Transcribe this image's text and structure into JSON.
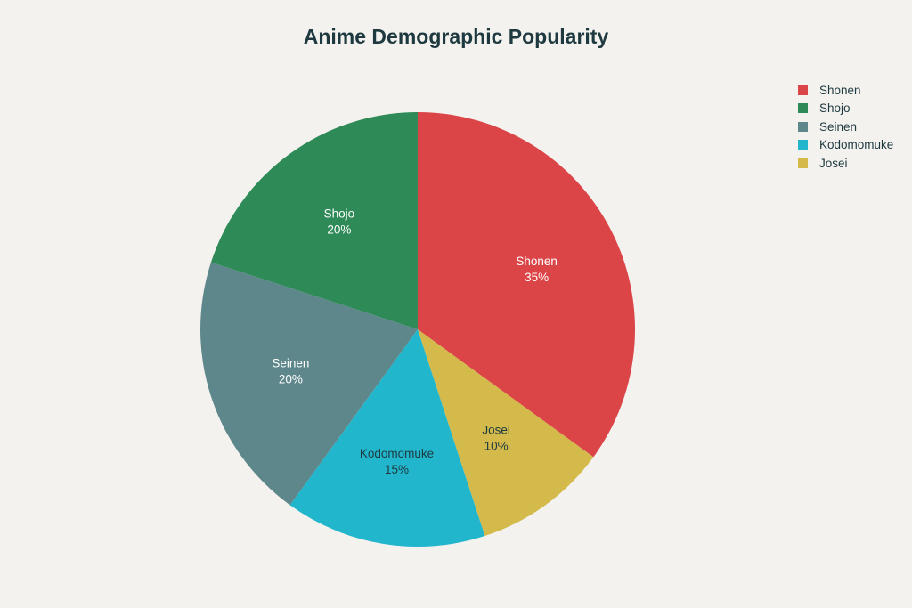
{
  "chart_data": {
    "type": "pie",
    "title": "Anime Demographic Popularity",
    "categories": [
      "Shonen",
      "Shojo",
      "Seinen",
      "Kodomomuke",
      "Josei"
    ],
    "values": [
      35,
      20,
      20,
      15,
      10
    ],
    "value_labels": [
      "35%",
      "20%",
      "20%",
      "15%",
      "10%"
    ],
    "slice_order": [
      "Shonen",
      "Josei",
      "Kodomomuke",
      "Seinen",
      "Shojo"
    ],
    "colors": {
      "Shonen": "#db4548",
      "Shojo": "#2e8a57",
      "Seinen": "#5e878b",
      "Kodomomuke": "#22b6cd",
      "Josei": "#d3ba4b"
    },
    "label_colors": {
      "Shonen": "#ffffff",
      "Shojo": "#ffffff",
      "Seinen": "#ffffff",
      "Kodomomuke": "#1e3a40",
      "Josei": "#1e3a40"
    },
    "legend": {
      "position": "top-right",
      "entries": [
        "Shonen",
        "Shojo",
        "Seinen",
        "Kodomomuke",
        "Josei"
      ]
    },
    "background": "#f3f2ee"
  }
}
